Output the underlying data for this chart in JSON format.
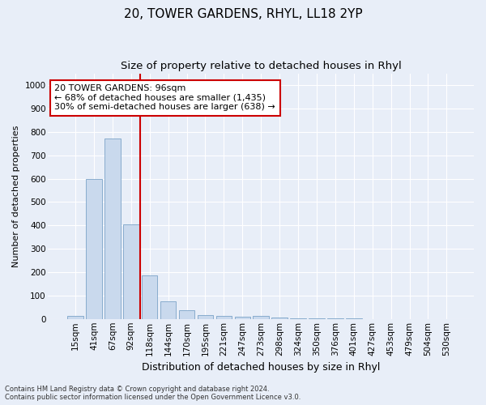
{
  "title1": "20, TOWER GARDENS, RHYL, LL18 2YP",
  "title2": "Size of property relative to detached houses in Rhyl",
  "xlabel": "Distribution of detached houses by size in Rhyl",
  "ylabel": "Number of detached properties",
  "footnote": "Contains HM Land Registry data © Crown copyright and database right 2024.\nContains public sector information licensed under the Open Government Licence v3.0.",
  "bar_labels": [
    "15sqm",
    "41sqm",
    "67sqm",
    "92sqm",
    "118sqm",
    "144sqm",
    "170sqm",
    "195sqm",
    "221sqm",
    "247sqm",
    "273sqm",
    "298sqm",
    "324sqm",
    "350sqm",
    "376sqm",
    "401sqm",
    "427sqm",
    "453sqm",
    "479sqm",
    "504sqm",
    "530sqm"
  ],
  "bar_values": [
    13,
    600,
    770,
    405,
    185,
    75,
    38,
    17,
    13,
    10,
    12,
    7,
    3,
    2,
    1,
    1,
    0,
    0,
    0,
    0,
    0
  ],
  "bar_color": "#c9d9ed",
  "bar_edgecolor": "#7ba3c8",
  "vline_index": 3,
  "vline_color": "#cc0000",
  "annotation_text": "20 TOWER GARDENS: 96sqm\n← 68% of detached houses are smaller (1,435)\n30% of semi-detached houses are larger (638) →",
  "annotation_box_edgecolor": "#cc0000",
  "annotation_box_facecolor": "#ffffff",
  "ylim": [
    0,
    1050
  ],
  "yticks": [
    0,
    100,
    200,
    300,
    400,
    500,
    600,
    700,
    800,
    900,
    1000
  ],
  "background_color": "#e8eef8",
  "plot_bg_color": "#e8eef8",
  "grid_color": "#ffffff",
  "title1_fontsize": 11,
  "title2_fontsize": 9.5,
  "xlabel_fontsize": 9,
  "ylabel_fontsize": 8,
  "tick_fontsize": 7.5,
  "annotation_fontsize": 8,
  "footnote_fontsize": 6
}
